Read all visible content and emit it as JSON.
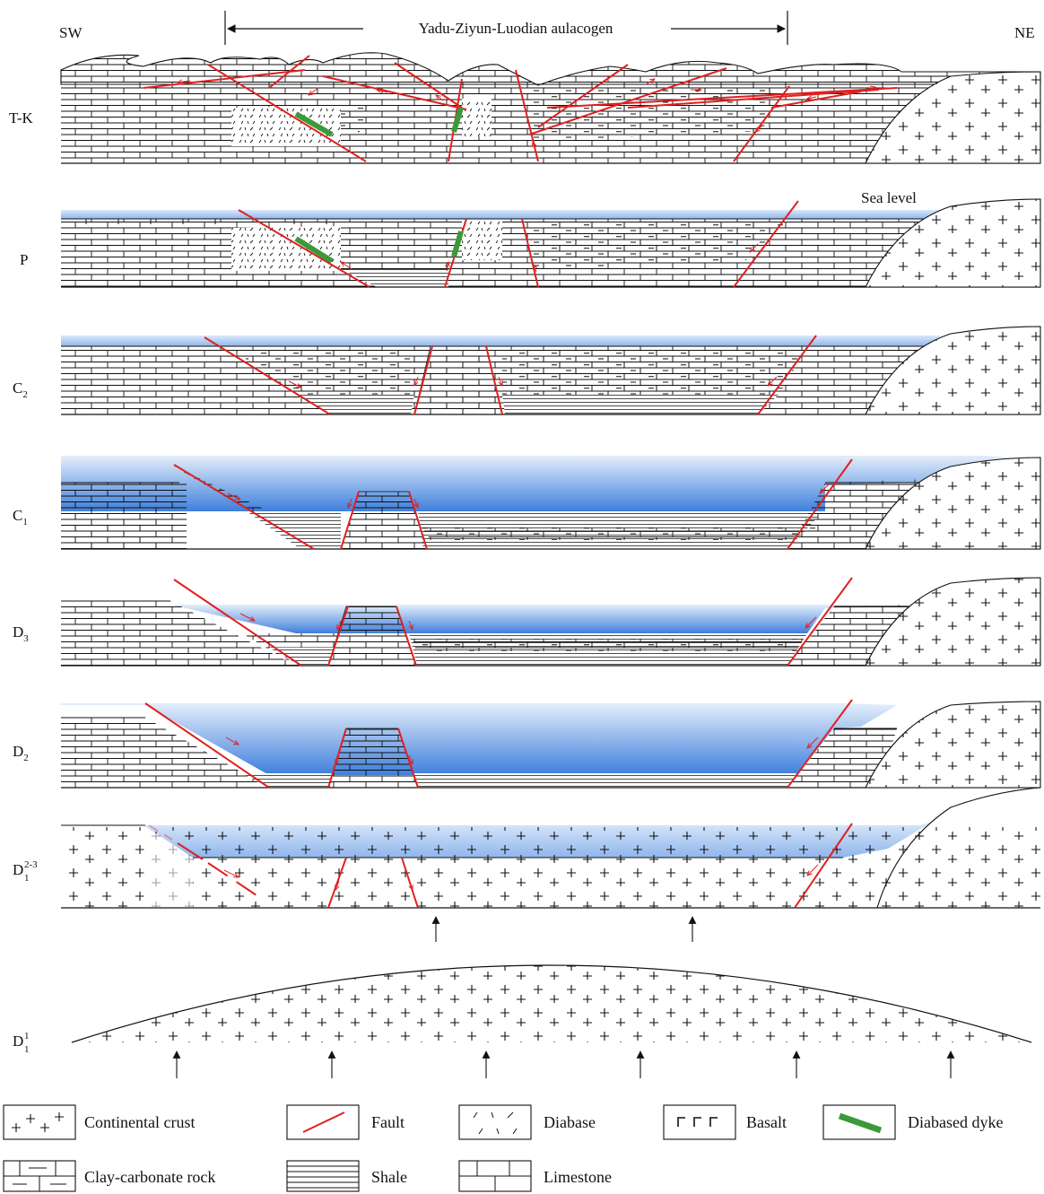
{
  "header": {
    "left": "SW",
    "right": "NE",
    "title": "Yadu-Ziyun-Luodian aulacogen"
  },
  "sea_level_label": "Sea level",
  "stages": [
    {
      "id": "tk",
      "label": "T-K"
    },
    {
      "id": "p",
      "label": "P"
    },
    {
      "id": "c2",
      "label": "C",
      "sub": "2"
    },
    {
      "id": "c1",
      "label": "C",
      "sub": "1"
    },
    {
      "id": "d3",
      "label": "D",
      "sub": "3"
    },
    {
      "id": "d2",
      "label": "D",
      "sub": "2"
    },
    {
      "id": "d1_23",
      "label": "D",
      "sub": "1",
      "sup": "2-3"
    },
    {
      "id": "d1_1",
      "label": "D",
      "sub": "1",
      "sup": "1"
    }
  ],
  "legend": [
    {
      "id": "continental-crust",
      "label": "Continental crust"
    },
    {
      "id": "fault",
      "label": "Fault"
    },
    {
      "id": "diabase",
      "label": "Diabase"
    },
    {
      "id": "basalt",
      "label": "Basalt"
    },
    {
      "id": "diabased-dyke",
      "label": "Diabased dyke"
    },
    {
      "id": "clay-carbonate-rock",
      "label": "Clay-carbonate rock"
    },
    {
      "id": "shale",
      "label": "Shale"
    },
    {
      "id": "limestone",
      "label": "Limestone"
    }
  ],
  "colors": {
    "fault": "#e02020",
    "dyke": "#3a9a3a",
    "water_top": "#e3eefb",
    "water_bottom": "#3f7fdc",
    "line": "#111111"
  }
}
